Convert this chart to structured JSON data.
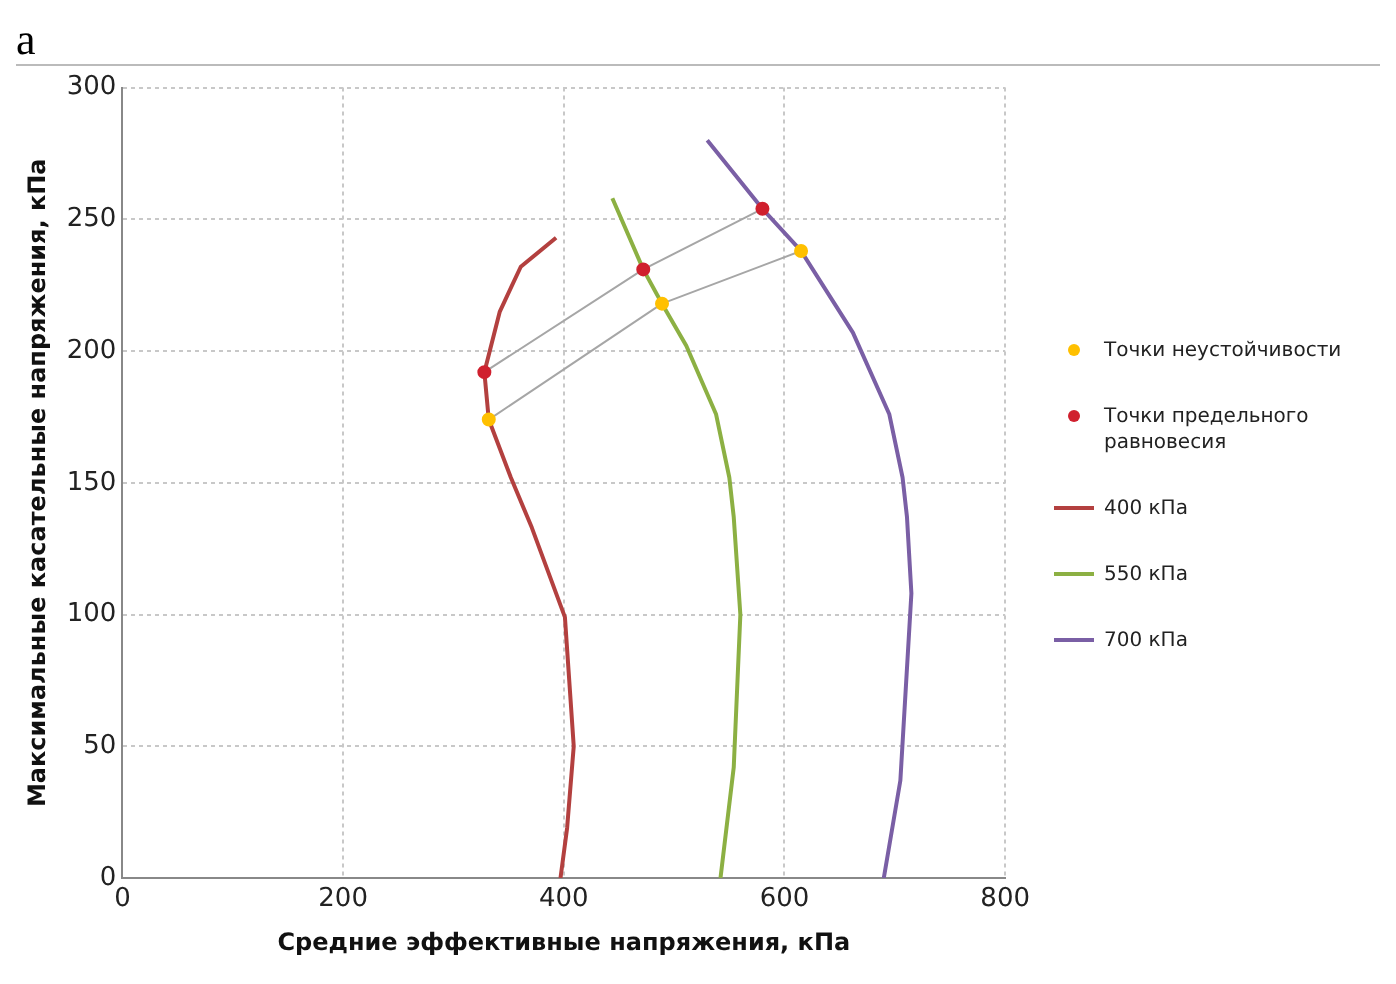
{
  "chart_data": {
    "type": "line",
    "xlabel": "Средние эффективные напряжения, кПа",
    "ylabel": "Максимальные касательные напряжения, кПа",
    "annotations": [
      "a"
    ],
    "xlim": [
      0,
      800
    ],
    "xticks": [
      0,
      200,
      400,
      600,
      800
    ],
    "ylim": [
      0,
      300
    ],
    "yticks": [
      0,
      50,
      100,
      150,
      200,
      250,
      300
    ],
    "grid": true,
    "legend": "right",
    "series": [
      {
        "type": "line",
        "color": "#a6a6a6",
        "x": [
          328,
          472,
          580
        ],
        "values": [
          192,
          231,
          254
        ]
      },
      {
        "type": "line",
        "color": "#a6a6a6",
        "x": [
          332,
          489,
          615
        ],
        "values": [
          174,
          218,
          238
        ]
      },
      {
        "type": "scatter",
        "name": "Точки неустойчивости",
        "color": "#ffc000",
        "x": [
          332,
          489,
          615
        ],
        "values": [
          174,
          218,
          238
        ]
      },
      {
        "type": "scatter",
        "name": "Точки предельного равновесия",
        "color": "#d0202e",
        "x": [
          328,
          472,
          580
        ],
        "values": [
          192,
          231,
          254
        ]
      },
      {
        "type": "line",
        "name": "400 кПа",
        "color": "#b3403f",
        "x": [
          397,
          403,
          409,
          401,
          371,
          367,
          352,
          332,
          328,
          342,
          361,
          393
        ],
        "values": [
          0,
          19,
          50,
          99,
          133,
          137,
          152,
          174,
          192,
          215,
          232,
          243
        ]
      },
      {
        "type": "line",
        "name": "550 кПа",
        "color": "#8cb043",
        "x": [
          542,
          554,
          560,
          554,
          550,
          538,
          511,
          489,
          472,
          444
        ],
        "values": [
          0,
          42,
          100,
          137,
          152,
          176,
          202,
          218,
          231,
          258
        ]
      },
      {
        "type": "line",
        "name": "700 кПа",
        "color": "#7a5fa5",
        "x": [
          690,
          705,
          715,
          711,
          707,
          695,
          662,
          615,
          580,
          530
        ],
        "values": [
          0,
          37,
          108,
          137,
          152,
          176,
          207,
          238,
          254,
          280
        ]
      }
    ]
  }
}
